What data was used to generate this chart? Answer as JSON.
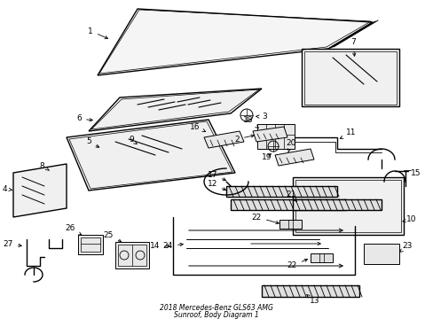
{
  "bg_color": "#ffffff",
  "line_color": "#000000",
  "fig_width": 4.89,
  "fig_height": 3.6,
  "dpi": 100,
  "title_line1": "2018 Mercedes-Benz GLS63 AMG",
  "title_line2": "Sunroof, Body Diagram 1"
}
